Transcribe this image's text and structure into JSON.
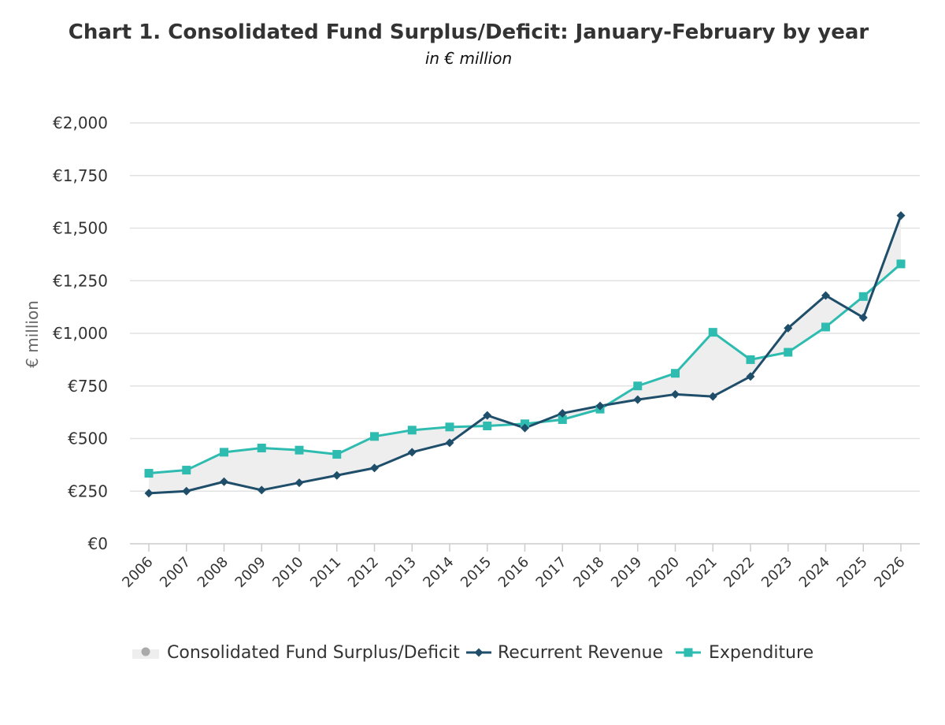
{
  "chart_data": {
    "type": "line",
    "title": "Chart 1. Consolidated Fund Surplus/Deficit: January-February by year",
    "subtitle": "in € million",
    "xlabel": "",
    "ylabel": "€ million",
    "ylim": [
      0,
      2000
    ],
    "yticks": [
      "€0",
      "€250",
      "€500",
      "€750",
      "€1,000",
      "€1,250",
      "€1,500",
      "€1,750",
      "€2,000"
    ],
    "categories": [
      "2006",
      "2007",
      "2008",
      "2009",
      "2010",
      "2011",
      "2012",
      "2013",
      "2014",
      "2015",
      "2016",
      "2017",
      "2018",
      "2019",
      "2020",
      "2021",
      "2022",
      "2023",
      "2024",
      "2025",
      "2026"
    ],
    "series": [
      {
        "name": "Consolidated Fund Surplus/Deficit",
        "kind": "arearange",
        "color": "#eeeeee",
        "marker_color": "#aaaaaa"
      },
      {
        "name": "Recurrent Revenue",
        "kind": "line",
        "marker": "diamond",
        "color": "#1f4e6b",
        "values": [
          240,
          250,
          295,
          255,
          290,
          325,
          360,
          435,
          480,
          610,
          550,
          620,
          655,
          685,
          710,
          700,
          795,
          1025,
          1180,
          1075,
          1560
        ]
      },
      {
        "name": "Expenditure",
        "kind": "line",
        "marker": "square",
        "color": "#2ebcb0",
        "values": [
          335,
          350,
          435,
          455,
          445,
          425,
          510,
          540,
          555,
          560,
          570,
          590,
          640,
          750,
          810,
          1005,
          875,
          910,
          1030,
          1175,
          1330
        ]
      }
    ],
    "legend_position": "bottom-center",
    "grid": true
  }
}
